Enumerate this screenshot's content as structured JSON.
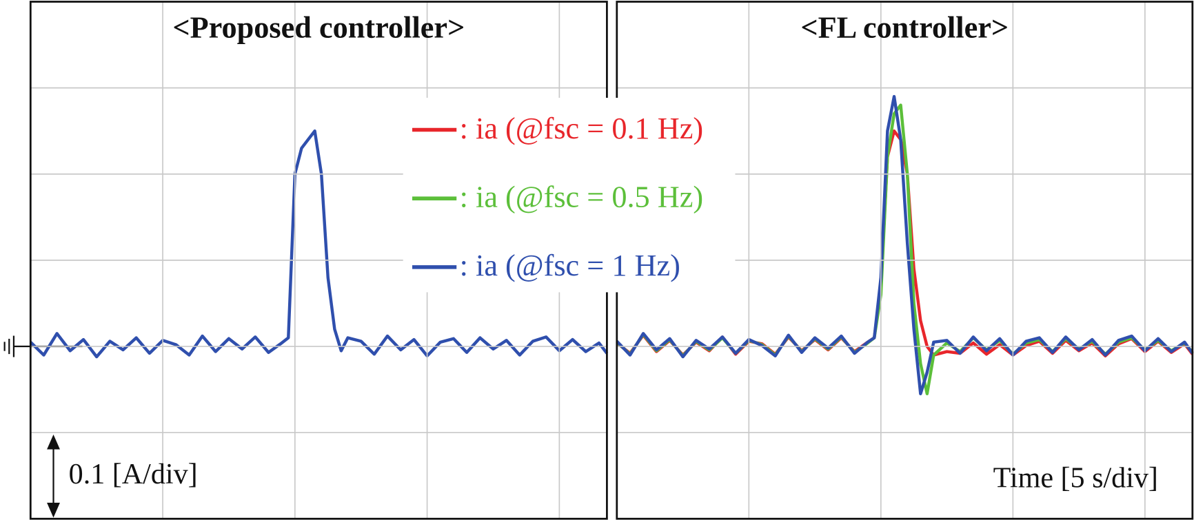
{
  "chart_data": [
    {
      "type": "line",
      "title": "<Proposed controller>",
      "annotation": "0.1 [A/div]",
      "x": [
        0,
        0.5,
        1,
        1.5,
        2,
        2.5,
        3,
        3.5,
        4,
        4.5,
        5,
        5.5,
        6,
        6.5,
        7,
        7.5,
        8,
        8.5,
        9,
        9.5,
        9.75,
        10,
        10.25,
        10.5,
        10.75,
        11,
        11.25,
        11.5,
        11.75,
        12,
        12.5,
        13,
        13.5,
        14,
        14.5,
        15,
        15.5,
        16,
        16.5,
        17,
        17.5,
        18,
        18.5,
        19,
        19.5,
        20,
        20.5,
        21,
        21.5,
        21.8
      ],
      "xlim": [
        0,
        21.8
      ],
      "xticks": [
        5,
        10,
        15,
        20
      ],
      "ylim": [
        -0.2,
        0.4
      ],
      "yticks": [
        -0.1,
        0,
        0.1,
        0.2,
        0.3
      ],
      "grid": true,
      "series": [
        {
          "color": "#2f4fad",
          "values": [
            0.005,
            -0.01,
            0.015,
            -0.005,
            0.008,
            -0.012,
            0.006,
            -0.004,
            0.01,
            -0.008,
            0.007,
            0.002,
            -0.01,
            0.012,
            -0.006,
            0.009,
            -0.003,
            0.011,
            -0.007,
            0.004,
            0.01,
            0.2,
            0.23,
            0.24,
            0.25,
            0.2,
            0.08,
            0.02,
            -0.005,
            0.01,
            0.006,
            -0.009,
            0.012,
            -0.004,
            0.008,
            -0.011,
            0.005,
            0.009,
            -0.007,
            0.01,
            -0.003,
            0.007,
            -0.01,
            0.006,
            0.011,
            -0.005,
            0.008,
            -0.006,
            0.004,
            -0.008
          ]
        }
      ]
    },
    {
      "type": "line",
      "title": "<FL controller>",
      "annotation": "Time [5 s/div]",
      "x": [
        0,
        0.5,
        1,
        1.5,
        2,
        2.5,
        3,
        3.5,
        4,
        4.5,
        5,
        5.5,
        6,
        6.5,
        7,
        7.5,
        8,
        8.5,
        9,
        9.5,
        9.75,
        10,
        10.25,
        10.5,
        10.75,
        11,
        11.25,
        11.5,
        11.75,
        12,
        12.5,
        13,
        13.5,
        14,
        14.5,
        15,
        15.5,
        16,
        16.5,
        17,
        17.5,
        18,
        18.5,
        19,
        19.5,
        20,
        20.5,
        21,
        21.5,
        21.8
      ],
      "xlim": [
        0,
        21.8
      ],
      "xticks": [
        5,
        10,
        15,
        20
      ],
      "ylim": [
        -0.2,
        0.4
      ],
      "yticks": [
        -0.1,
        0,
        0.1,
        0.2,
        0.3
      ],
      "grid": true,
      "series": [
        {
          "name": ": ia (@fsc = 0.1 Hz)",
          "color": "#e8262b",
          "values": [
            0.004,
            -0.008,
            0.013,
            -0.006,
            0.007,
            -0.01,
            0.005,
            -0.005,
            0.011,
            -0.009,
            0.006,
            0.003,
            -0.009,
            0.011,
            -0.005,
            0.008,
            -0.004,
            0.01,
            -0.006,
            0.005,
            0.01,
            0.07,
            0.22,
            0.25,
            0.24,
            0.2,
            0.09,
            0.03,
            0.0,
            -0.01,
            -0.006,
            -0.008,
            0.004,
            -0.009,
            0.002,
            -0.01,
            0.001,
            0.006,
            -0.008,
            0.007,
            -0.005,
            0.004,
            -0.011,
            0.003,
            0.009,
            -0.006,
            0.006,
            -0.007,
            0.003,
            -0.009
          ]
        },
        {
          "name": ": ia (@fsc = 0.5 Hz)",
          "color": "#5cbf3a",
          "values": [
            0.005,
            -0.009,
            0.014,
            -0.005,
            0.008,
            -0.011,
            0.006,
            -0.004,
            0.01,
            -0.008,
            0.007,
            0.002,
            -0.01,
            0.012,
            -0.006,
            0.009,
            -0.003,
            0.011,
            -0.007,
            0.004,
            0.01,
            0.06,
            0.22,
            0.27,
            0.28,
            0.2,
            0.05,
            -0.02,
            -0.055,
            -0.01,
            0.004,
            -0.006,
            0.01,
            -0.004,
            0.007,
            -0.009,
            0.004,
            0.008,
            -0.006,
            0.009,
            -0.003,
            0.006,
            -0.009,
            0.005,
            0.01,
            -0.004,
            0.007,
            -0.005,
            0.004,
            -0.007
          ]
        },
        {
          "name": ": ia (@fsc = 1 Hz)",
          "color": "#2f4fad",
          "values": [
            0.006,
            -0.01,
            0.015,
            -0.004,
            0.009,
            -0.012,
            0.007,
            -0.003,
            0.011,
            -0.008,
            0.008,
            0.001,
            -0.011,
            0.013,
            -0.007,
            0.01,
            -0.002,
            0.012,
            -0.008,
            0.005,
            0.01,
            0.08,
            0.25,
            0.29,
            0.24,
            0.12,
            0.02,
            -0.055,
            -0.03,
            0.005,
            0.007,
            -0.008,
            0.011,
            -0.005,
            0.009,
            -0.01,
            0.006,
            0.01,
            -0.007,
            0.011,
            -0.004,
            0.008,
            -0.01,
            0.007,
            0.012,
            -0.005,
            0.009,
            -0.006,
            0.005,
            -0.008
          ]
        }
      ]
    }
  ]
}
